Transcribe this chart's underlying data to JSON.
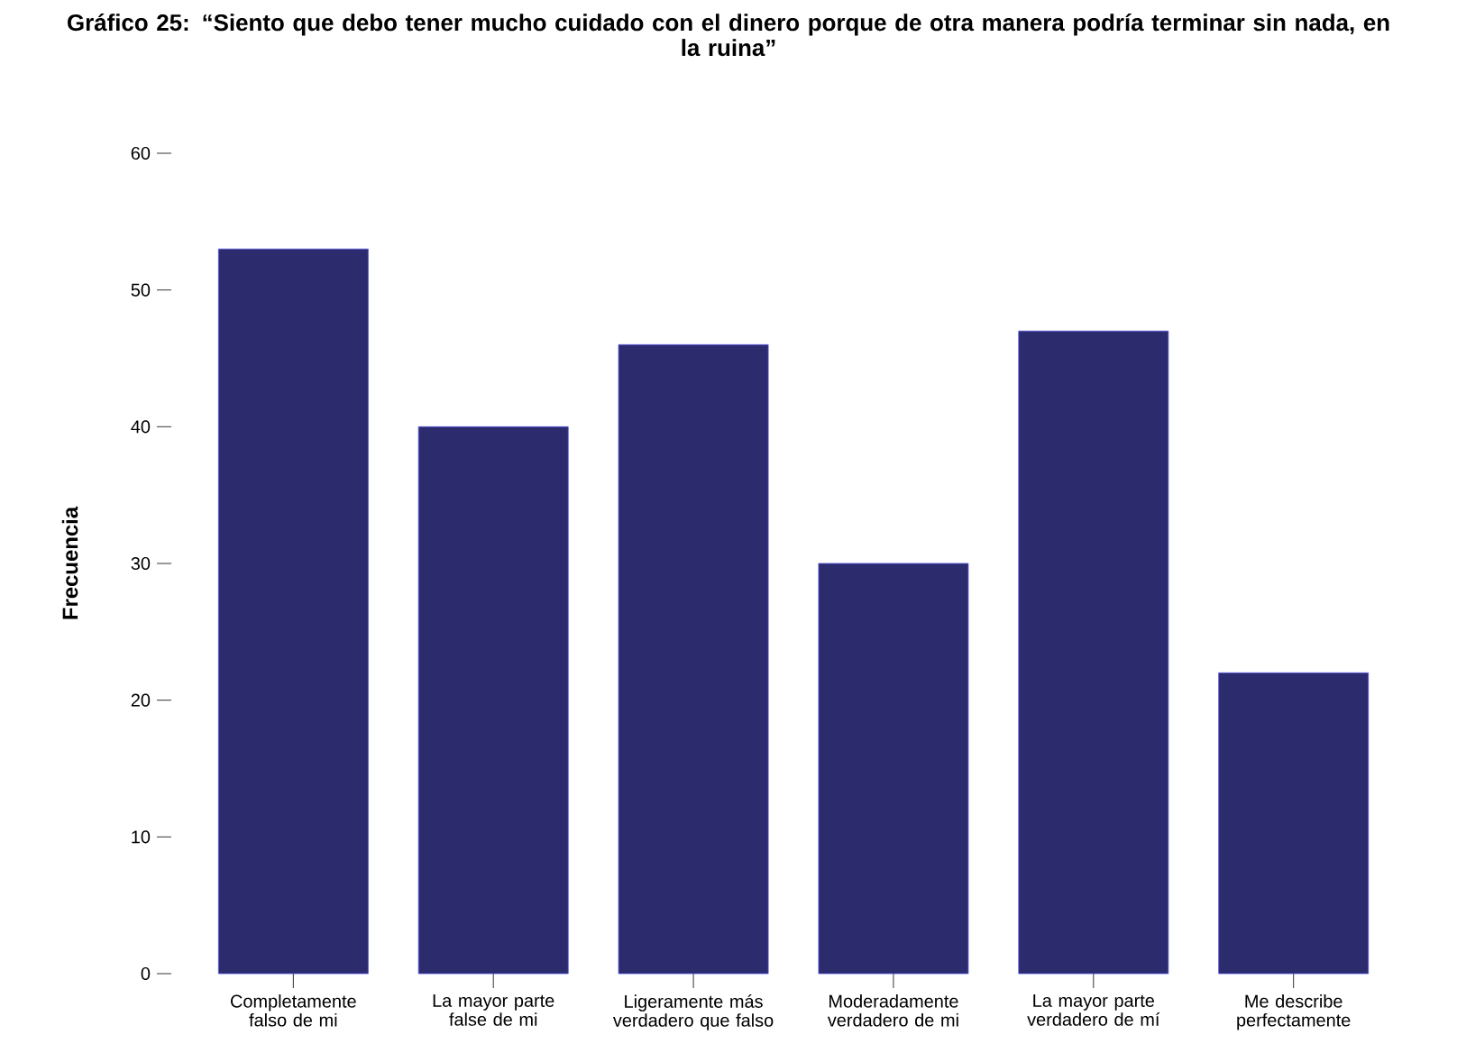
{
  "chart_data": {
    "type": "bar",
    "title": "Gráfico 25: “Siento que debo tener mucho cuidado con el dinero porque de otra manera podría terminar sin nada, en la ruina”",
    "ylabel": "Frecuencia",
    "categories": [
      "Completamente falso de mi",
      "La mayor parte false de mi",
      "Ligeramente más verdadero que falso",
      "Moderadamente verdadero de mi",
      "La mayor parte verdadero de mí",
      "Me describe perfectamente"
    ],
    "values": [
      53,
      40,
      46,
      30,
      47,
      22
    ],
    "color": "#2b2b6e",
    "ylim": [
      0,
      60
    ],
    "yticks": [
      0,
      10,
      20,
      30,
      40,
      50,
      60
    ]
  }
}
